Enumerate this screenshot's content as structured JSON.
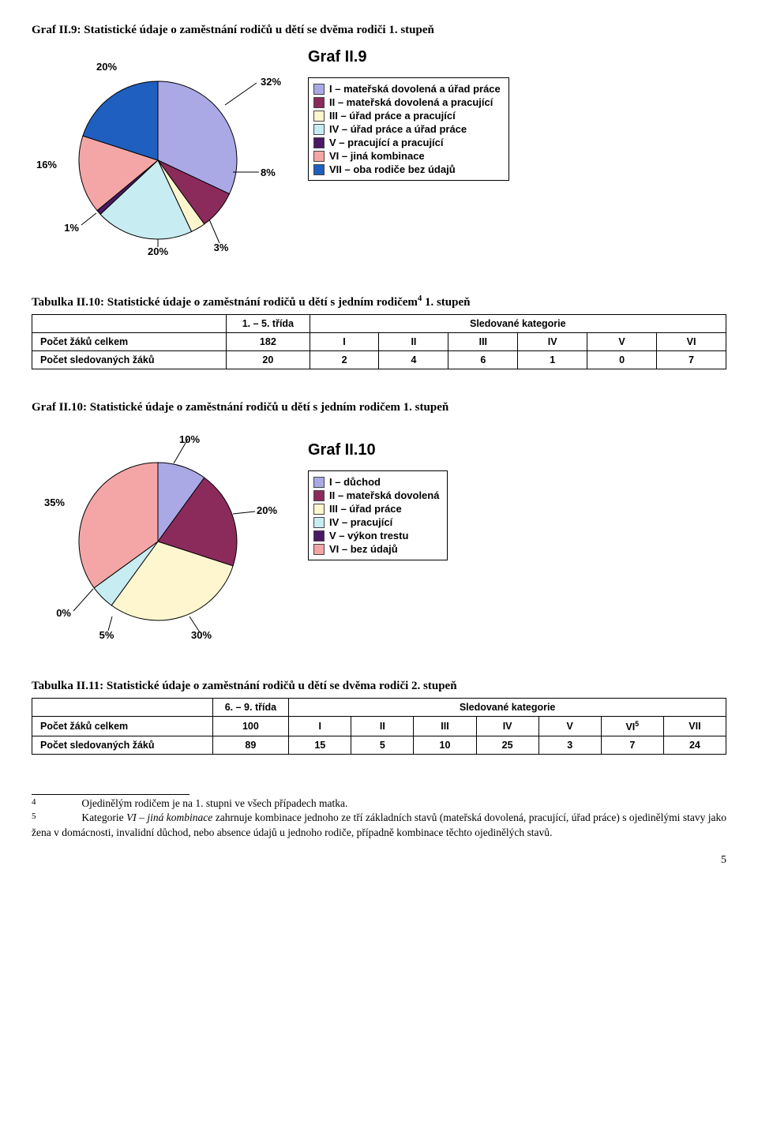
{
  "graf9": {
    "heading": "Graf II.9: Statistické údaje o zaměstnání rodičů u dětí se dvěma rodiči 1. stupeň",
    "title": "Graf II.9",
    "slices": [
      {
        "label": "I – mateřská dovolená a úřad práce",
        "pct": 32,
        "angle_start": -90,
        "color": "#aaa9e6"
      },
      {
        "label": "II – mateřská dovolená a pracující",
        "pct": 8,
        "angle_start": 25.2,
        "color": "#8b2b5c"
      },
      {
        "label": "III – úřad práce a pracující",
        "pct": 3,
        "angle_start": 54,
        "color": "#fdf6cf"
      },
      {
        "label": "IV – úřad práce a úřad práce",
        "pct": 20,
        "angle_start": 64.8,
        "color": "#c7ecf2"
      },
      {
        "label": "V – pracující a pracující",
        "pct": 1,
        "angle_start": 136.8,
        "color": "#4a1a64"
      },
      {
        "label": "VI – jiná kombinace",
        "pct": 16,
        "angle_start": 140.4,
        "color": "#f4a6a6"
      },
      {
        "label": "VII – oba rodiče bez údajů",
        "pct": 20,
        "angle_start": 198,
        "color": "#1f5fbf"
      }
    ],
    "labels": {
      "l32": "32%",
      "l8": "8%",
      "l3": "3%",
      "l20a": "20%",
      "l1": "1%",
      "l16": "16%",
      "l20b": "20%"
    },
    "radius": 100
  },
  "tab10": {
    "title_html": "Tabulka II.10: Statistické údaje o zaměstnání rodičů u dětí s jedním rodičem",
    "sup": "4",
    "title_tail": " 1. stupeň",
    "header_col": "1. – 5. třída",
    "header_cat": "Sledované kategorie",
    "row1_label": "Počet žáků celkem",
    "row1_val": "182",
    "cats": [
      "I",
      "II",
      "III",
      "IV",
      "V",
      "VI"
    ],
    "row2_label": "Počet sledovaných žáků",
    "row2_val": "20",
    "row2_cells": [
      "2",
      "4",
      "6",
      "1",
      "0",
      "7"
    ]
  },
  "graf10": {
    "heading": "Graf II.10: Statistické údaje o zaměstnání rodičů u dětí s jedním rodičem 1. stupeň",
    "title": "Graf II.10",
    "slices": [
      {
        "label": "I – důchod",
        "pct": 10,
        "angle_start": -90,
        "color": "#aaa9e6"
      },
      {
        "label": "II – mateřská dovolená",
        "pct": 20,
        "angle_start": -54,
        "color": "#8b2b5c"
      },
      {
        "label": "III – úřad práce",
        "pct": 30,
        "angle_start": 18,
        "color": "#fdf6cf"
      },
      {
        "label": "IV – pracující",
        "pct": 5,
        "angle_start": 126,
        "color": "#c7ecf2"
      },
      {
        "label": "V – výkon trestu",
        "pct": 0,
        "angle_start": 144,
        "color": "#4a1a64"
      },
      {
        "label": "VI – bez údajů",
        "pct": 35,
        "angle_start": 144,
        "color": "#f4a6a6"
      }
    ],
    "labels": {
      "l10": "10%",
      "l20": "20%",
      "l30": "30%",
      "l5": "5%",
      "l0": "0%",
      "l35": "35%"
    },
    "radius": 100
  },
  "tab11": {
    "title": "Tabulka II.11: Statistické údaje o zaměstnání rodičů u dětí se dvěma rodiči 2. stupeň",
    "header_col": "6. – 9. třída",
    "header_cat": "Sledované kategorie",
    "row1_label": "Počet žáků celkem",
    "row1_val": "100",
    "cats": [
      "I",
      "II",
      "III",
      "IV",
      "V"
    ],
    "cat6": "VI",
    "cat6_sup": "5",
    "cat7": "VII",
    "row2_label": "Počet sledovaných žáků",
    "row2_val": "89",
    "row2_cells": [
      "15",
      "5",
      "10",
      "25",
      "3",
      "7",
      "24"
    ]
  },
  "footnotes": {
    "fn4_num": "4",
    "fn4_text": "Ojedinělým rodičem je na 1. stupni ve všech případech matka.",
    "fn5_num": "5",
    "fn5_a": "Kategorie ",
    "fn5_em": "VI – jiná kombinace",
    "fn5_b": " zahrnuje kombinace jednoho ze tří základních stavů (mateřská dovolená, pracující, úřad práce) s ojedinělými stavy jako žena v domácnosti, invalidní důchod, nebo absence údajů u jednoho rodiče, případně kombinace těchto ojedinělých stavů."
  },
  "page": "5"
}
